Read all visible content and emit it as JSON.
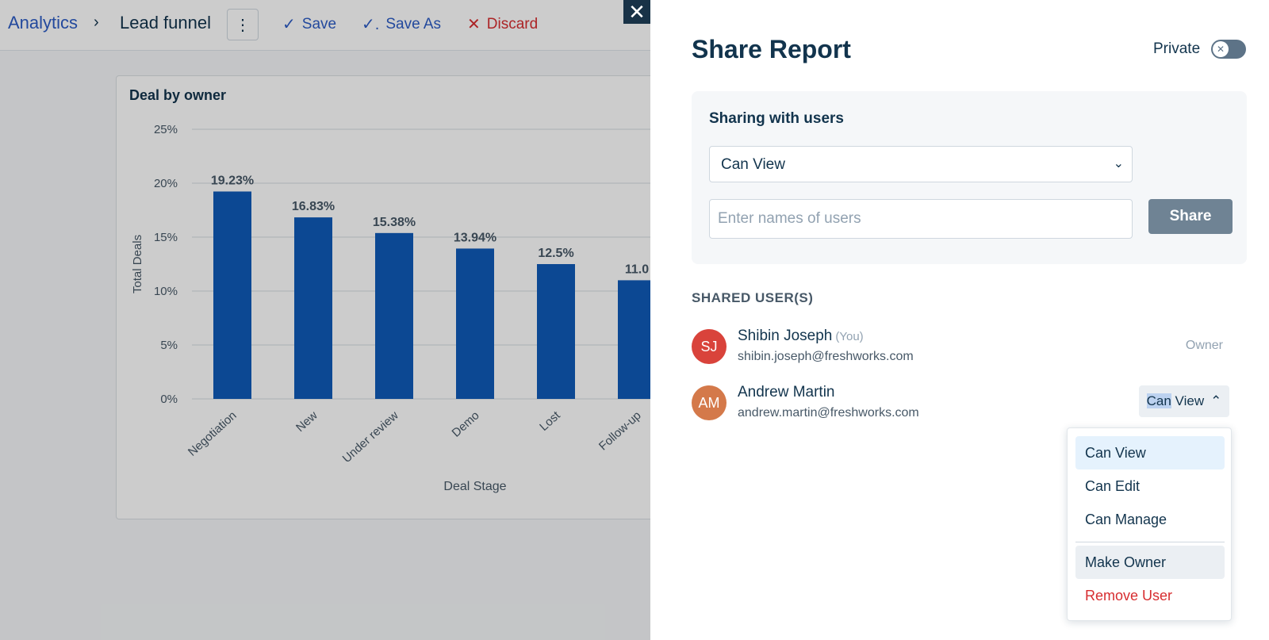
{
  "breadcrumb": {
    "root": "Analytics",
    "separator": "›",
    "current": "Lead funnel"
  },
  "toolbar": {
    "more_icon": "vertical-dots-icon",
    "save_label": "Save",
    "save_as_label": "Save As",
    "discard_label": "Discard"
  },
  "colors": {
    "bar": "#0f5bb8",
    "accent": "#2c5cc5",
    "danger": "#d72d30",
    "avatar_sj": "#d9433b",
    "avatar_am": "#d4794a"
  },
  "report": {
    "title": "Deal by owner"
  },
  "chart_data": {
    "type": "bar",
    "title": "Deal by owner",
    "xlabel": "Deal Stage",
    "ylabel": "Total Deals",
    "ylim": [
      0,
      25
    ],
    "yticks": [
      "0%",
      "5%",
      "10%",
      "15%",
      "20%",
      "25%"
    ],
    "ytick_values": [
      0,
      5,
      10,
      15,
      20,
      25
    ],
    "categories": [
      "Negotiation",
      "New",
      "Under review",
      "Demo",
      "Lost",
      "Follow-up"
    ],
    "values": [
      19.23,
      16.83,
      15.38,
      13.94,
      12.5,
      11.0
    ],
    "data_labels": [
      "19.23%",
      "16.83%",
      "15.38%",
      "13.94%",
      "12.5%",
      "11.0"
    ],
    "grid": true,
    "legend": "none"
  },
  "panel": {
    "close_icon": "close-icon",
    "title": "Share Report",
    "private_label": "Private",
    "private_enabled": false,
    "sharing_title": "Sharing with users",
    "permission_value": "Can View",
    "users_placeholder": "Enter names of users",
    "share_label": "Share",
    "shared_users_header": "SHARED USER(S)",
    "users": [
      {
        "initials": "SJ",
        "name": "Shibin Joseph",
        "you_label": "(You)",
        "email": "shibin.joseph@freshworks.com",
        "role": "Owner"
      },
      {
        "initials": "AM",
        "name": "Andrew Martin",
        "email": "andrew.martin@freshworks.com",
        "role_highlight": "Can",
        "role_rest": " View"
      }
    ],
    "role_menu": [
      "Can View",
      "Can Edit",
      "Can Manage",
      "Make Owner",
      "Remove User"
    ]
  }
}
